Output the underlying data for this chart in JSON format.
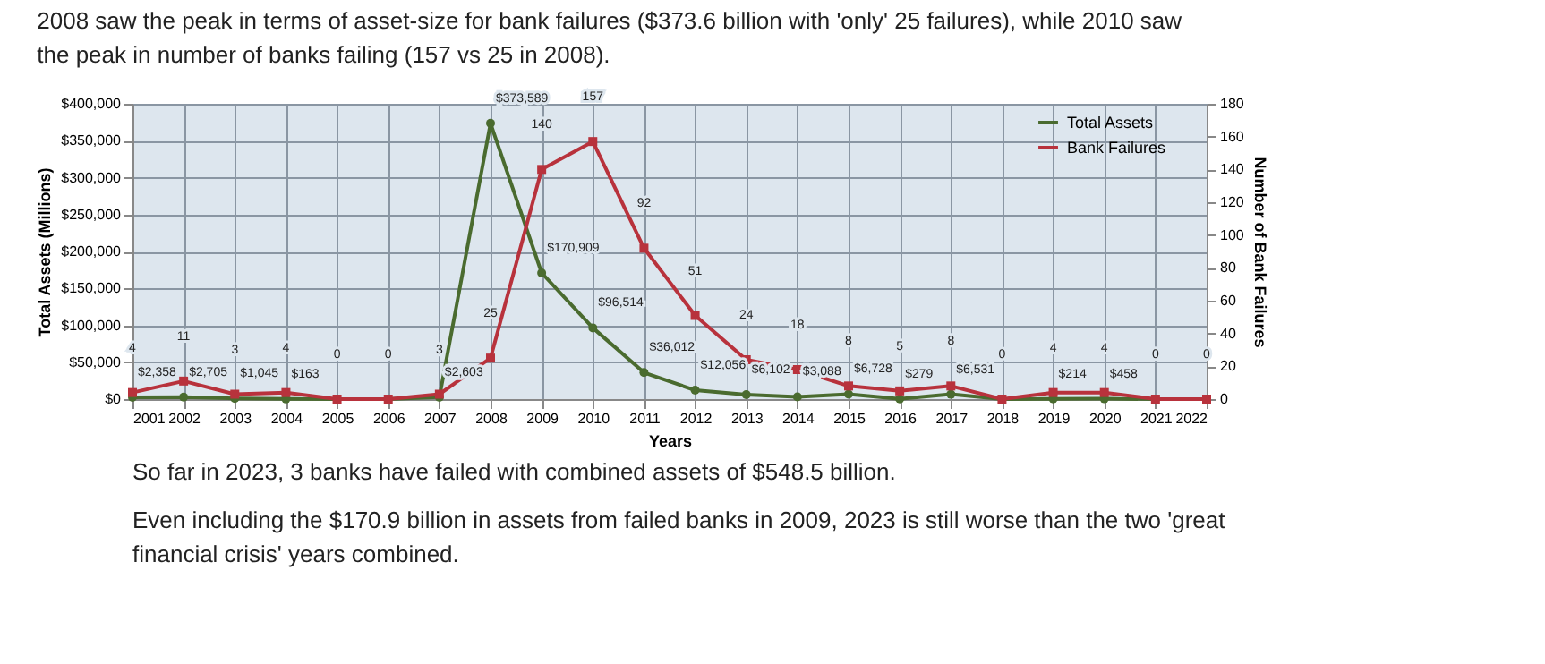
{
  "chart_data": {
    "type": "line",
    "title": "2008 saw the peak in terms of asset-size for bank failures ($373.6 billion with 'only' 25 failures), while 2010 saw the peak in number of banks failing (157 vs 25 in 2008).",
    "annotations": [
      "So far in 2023, 3 banks have failed with combined assets of $548.5 billion.",
      "Even including the $170.9 billion in assets from failed banks in 2009, 2023 is still worse than the two 'great financial crisis' years combined."
    ],
    "xlabel": "Years",
    "ylabel": "Total Assets (Millions)",
    "y2label": "Number of Bank Failures",
    "categories": [
      "2001",
      "2002",
      "2003",
      "2004",
      "2005",
      "2006",
      "2007",
      "2008",
      "2009",
      "2010",
      "2011",
      "2012",
      "2013",
      "2014",
      "2015",
      "2016",
      "2017",
      "2018",
      "2019",
      "2020",
      "2021",
      "2022"
    ],
    "series": [
      {
        "name": "Total Assets",
        "color": "#4a6b2f",
        "marker": "circle",
        "values": [
          2358,
          2705,
          1045,
          163,
          0,
          0,
          2603,
          373589,
          170909,
          96514,
          36012,
          12056,
          6102,
          3088,
          6728,
          279,
          6531,
          0,
          214,
          458,
          0,
          0
        ],
        "value_labels": [
          "$2,358",
          "$2,705",
          "$1,045",
          "$163",
          null,
          null,
          "$2,603",
          "$373,589",
          "$170,909",
          "$96,514",
          "$36,012",
          "$12,056",
          "$6,102",
          "$3,088",
          "$6,728",
          "$279",
          "$6,531",
          null,
          "$214",
          "$458",
          null,
          null
        ]
      },
      {
        "name": "Bank Failures",
        "color": "#b8323c",
        "marker": "square",
        "axis": "y2",
        "data_labels": true,
        "values": [
          4,
          11,
          3,
          4,
          0,
          0,
          3,
          25,
          140,
          157,
          92,
          51,
          24,
          18,
          8,
          5,
          8,
          0,
          4,
          4,
          0,
          0
        ]
      }
    ],
    "ylim": [
      0,
      400000
    ],
    "yticks": [
      {
        "value": 0,
        "label": "$0"
      },
      {
        "value": 50000,
        "label": "$50,000"
      },
      {
        "value": 100000,
        "label": "$100,000"
      },
      {
        "value": 150000,
        "label": "$150,000"
      },
      {
        "value": 200000,
        "label": "$200,000"
      },
      {
        "value": 250000,
        "label": "$250,000"
      },
      {
        "value": 300000,
        "label": "$300,000"
      },
      {
        "value": 350000,
        "label": "$350,000"
      },
      {
        "value": 400000,
        "label": "$400,000"
      }
    ],
    "y2lim": [
      0,
      180
    ],
    "y2ticks": [
      0,
      20,
      40,
      60,
      80,
      100,
      120,
      140,
      160,
      180
    ],
    "grid": true,
    "legend": "top right"
  }
}
